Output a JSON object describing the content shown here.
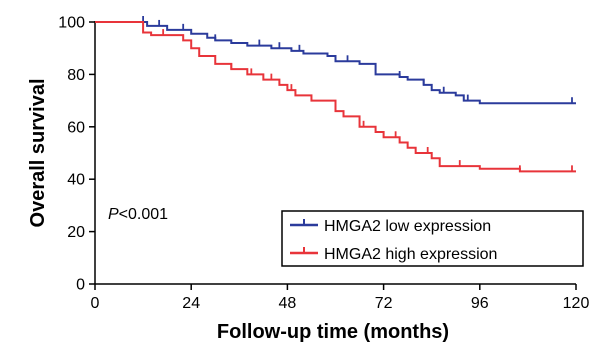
{
  "chart_data": {
    "type": "line",
    "step": true,
    "xlabel": "Follow-up time (months)",
    "ylabel": "Overall survival",
    "xlim": [
      0,
      120
    ],
    "ylim": [
      0,
      100
    ],
    "xticks": [
      "0",
      "24",
      "48",
      "72",
      "96",
      "120"
    ],
    "yticks": [
      "0",
      "20",
      "40",
      "60",
      "80",
      "100"
    ],
    "grid": false,
    "legend_position": "bottom-right",
    "annotation": {
      "italic": "P",
      "rest": "<0.001"
    },
    "series": [
      {
        "name": "HMGA2 low expression",
        "color": "#2b3b9c",
        "points": [
          [
            0,
            100
          ],
          [
            10,
            100
          ],
          [
            13,
            98.5
          ],
          [
            18,
            97
          ],
          [
            24,
            95.5
          ],
          [
            28,
            94
          ],
          [
            30,
            93
          ],
          [
            34,
            92
          ],
          [
            38,
            91
          ],
          [
            44,
            90
          ],
          [
            49,
            89
          ],
          [
            52,
            88
          ],
          [
            58,
            87
          ],
          [
            60,
            85
          ],
          [
            66,
            84
          ],
          [
            70,
            80
          ],
          [
            76,
            79
          ],
          [
            78,
            78
          ],
          [
            82,
            76
          ],
          [
            84,
            74
          ],
          [
            86,
            73
          ],
          [
            90,
            72
          ],
          [
            92,
            70
          ],
          [
            96,
            69
          ],
          [
            120,
            69
          ]
        ],
        "censored": [
          [
            12,
            100
          ],
          [
            16,
            98.5
          ],
          [
            22,
            97
          ],
          [
            30,
            93
          ],
          [
            41,
            91
          ],
          [
            46,
            90
          ],
          [
            51,
            89
          ],
          [
            63,
            85
          ],
          [
            76,
            79
          ],
          [
            82,
            76
          ],
          [
            87,
            73
          ],
          [
            93,
            70
          ],
          [
            119,
            69
          ]
        ]
      },
      {
        "name": "HMGA2 high expression",
        "color": "#e8343a",
        "points": [
          [
            0,
            100
          ],
          [
            10,
            100
          ],
          [
            12,
            96
          ],
          [
            14,
            95
          ],
          [
            22,
            93
          ],
          [
            24,
            90
          ],
          [
            26,
            87
          ],
          [
            30,
            84
          ],
          [
            34,
            82
          ],
          [
            38,
            80
          ],
          [
            42,
            78
          ],
          [
            46,
            76
          ],
          [
            48,
            74
          ],
          [
            50,
            72
          ],
          [
            54,
            70
          ],
          [
            60,
            66
          ],
          [
            62,
            64
          ],
          [
            66,
            60
          ],
          [
            70,
            58
          ],
          [
            72,
            56
          ],
          [
            76,
            54
          ],
          [
            78,
            52
          ],
          [
            80,
            50
          ],
          [
            84,
            48
          ],
          [
            86,
            45
          ],
          [
            96,
            44
          ],
          [
            106,
            43
          ],
          [
            120,
            43
          ]
        ],
        "censored": [
          [
            17,
            95
          ],
          [
            34,
            82
          ],
          [
            39,
            80
          ],
          [
            44,
            78
          ],
          [
            49,
            74
          ],
          [
            60,
            66
          ],
          [
            67,
            60
          ],
          [
            75,
            56
          ],
          [
            83,
            50
          ],
          [
            91,
            45
          ],
          [
            106,
            43
          ],
          [
            119,
            43
          ]
        ]
      }
    ]
  }
}
